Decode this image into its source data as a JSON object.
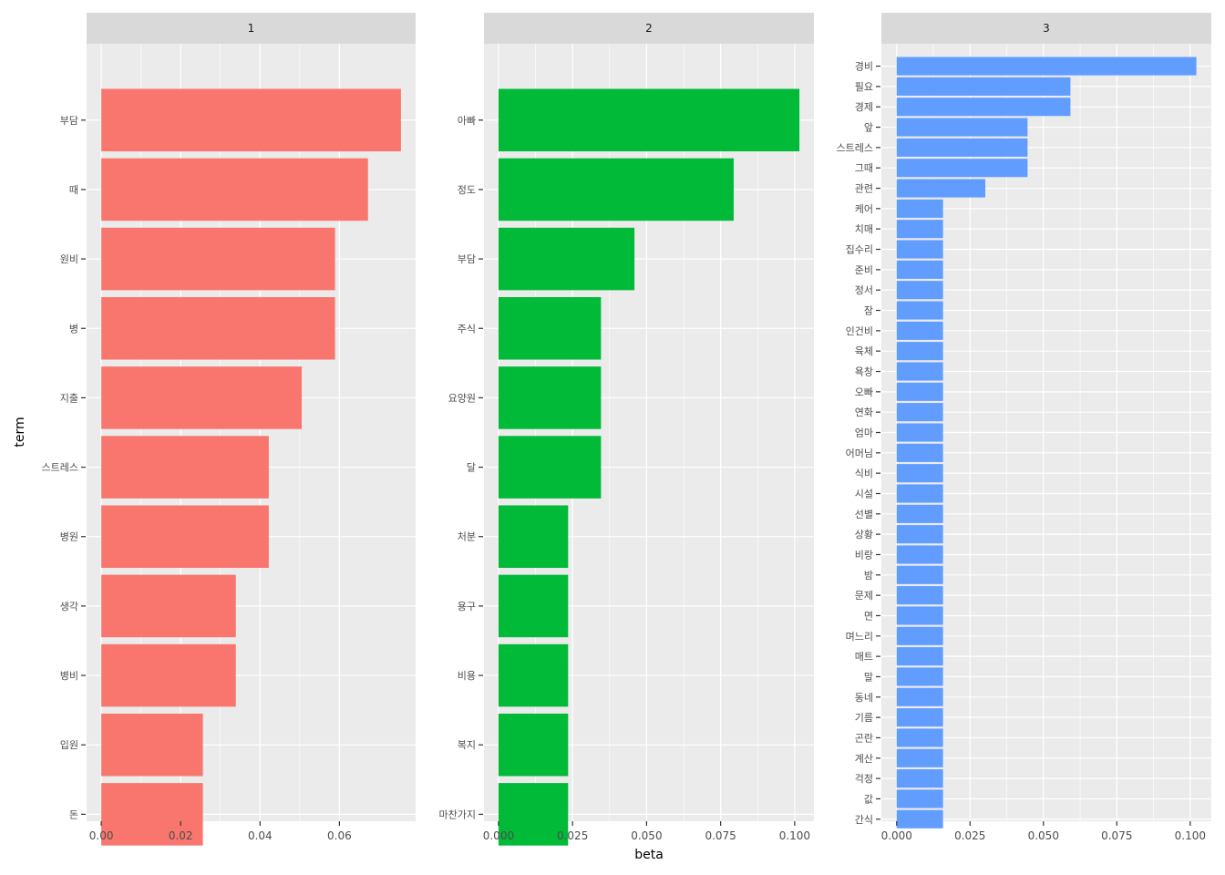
{
  "chart_data": {
    "type": "bar",
    "orientation": "horizontal",
    "xlabel": "beta",
    "ylabel": "term",
    "grid": true,
    "legend": "none",
    "facets": [
      {
        "title": "1",
        "color": "#F8766D",
        "xlim": [
          -0.0037,
          0.0792
        ],
        "xticks": [
          0,
          0.02,
          0.04,
          0.06
        ],
        "xtick_labels": [
          "0.00",
          "0.02",
          "0.04",
          "0.06"
        ],
        "categories": [
          "부담",
          "때",
          "원비",
          "병",
          "지출",
          "스트레스",
          "병원",
          "생각",
          "병비",
          "입원",
          "돈"
        ],
        "values": [
          0.0755,
          0.0672,
          0.0589,
          0.0589,
          0.0505,
          0.0422,
          0.0422,
          0.0339,
          0.0339,
          0.0256,
          0.0256
        ]
      },
      {
        "title": "2",
        "color": "#00BA38",
        "xlim": [
          -0.0049,
          0.1065
        ],
        "xticks": [
          0,
          0.025,
          0.05,
          0.075,
          0.1
        ],
        "xtick_labels": [
          "0.000",
          "0.025",
          "0.050",
          "0.075",
          "0.100"
        ],
        "categories": [
          "아빠",
          "정도",
          "부담",
          "주식",
          "요양원",
          "달",
          "처분",
          "용구",
          "비용",
          "복지",
          "마찬가지"
        ],
        "values": [
          0.1016,
          0.0794,
          0.0459,
          0.0346,
          0.0346,
          0.0346,
          0.0235,
          0.0235,
          0.0235,
          0.0235,
          0.0235
        ]
      },
      {
        "title": "3",
        "color": "#619CFF",
        "xlim": [
          -0.0052,
          0.1072
        ],
        "xticks": [
          0,
          0.025,
          0.05,
          0.075,
          0.1
        ],
        "xtick_labels": [
          "0.000",
          "0.025",
          "0.050",
          "0.075",
          "0.100"
        ],
        "categories": [
          "경비",
          "필요",
          "경제",
          "앞",
          "스트레스",
          "그때",
          "관련",
          "케어",
          "치매",
          "집수리",
          "준비",
          "정서",
          "잠",
          "인건비",
          "육체",
          "욕창",
          "오빠",
          "연화",
          "엄마",
          "어머님",
          "식비",
          "시설",
          "선별",
          "상황",
          "비랑",
          "밤",
          "문제",
          "면",
          "며느리",
          "매트",
          "말",
          "동네",
          "기름",
          "곤란",
          "계산",
          "걱정",
          "값",
          "간식"
        ],
        "values": [
          0.1021,
          0.0592,
          0.0592,
          0.0446,
          0.0446,
          0.0446,
          0.0302,
          0.0158,
          0.0158,
          0.0158,
          0.0158,
          0.0158,
          0.0158,
          0.0158,
          0.0158,
          0.0158,
          0.0158,
          0.0158,
          0.0158,
          0.0158,
          0.0158,
          0.0158,
          0.0158,
          0.0158,
          0.0158,
          0.0158,
          0.0158,
          0.0158,
          0.0158,
          0.0158,
          0.0158,
          0.0158,
          0.0158,
          0.0158,
          0.0158,
          0.0158,
          0.0158,
          0.0158
        ]
      }
    ]
  }
}
